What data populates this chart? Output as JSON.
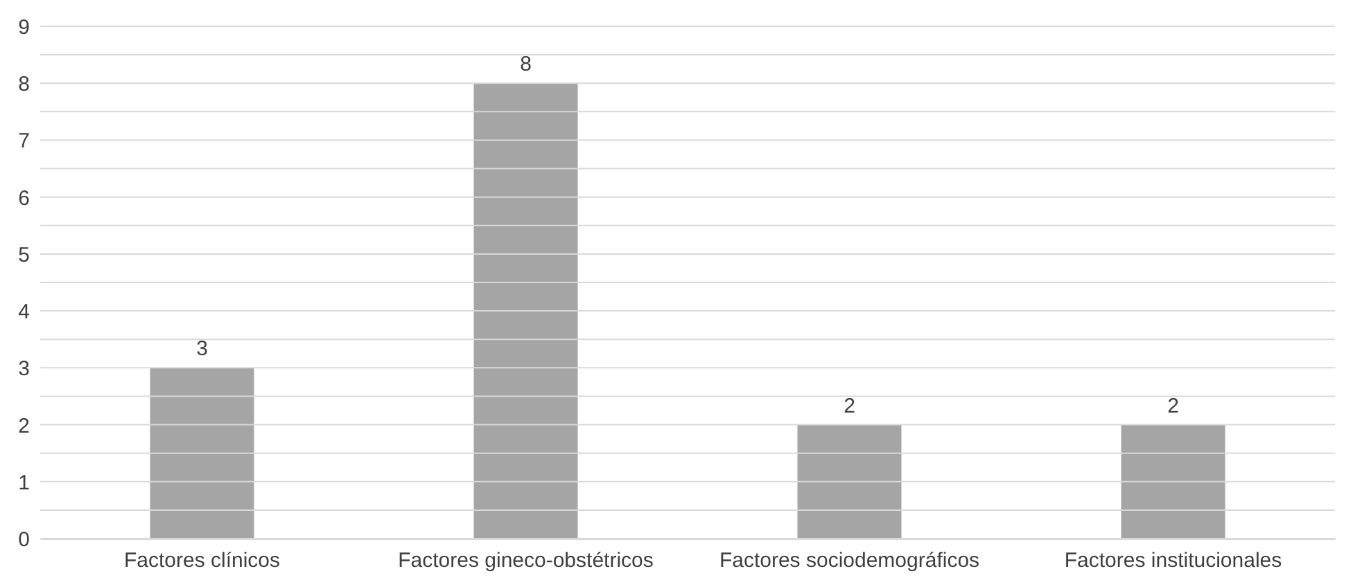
{
  "chart_data": {
    "type": "bar",
    "categories": [
      "Factores clínicos",
      "Factores gineco-obstétricos",
      "Factores sociodemográficos",
      "Factores institucionales"
    ],
    "values": [
      3,
      8,
      2,
      2
    ],
    "color": "#a5a5a5",
    "ylim": [
      0,
      9
    ],
    "yticks": [
      0,
      {
        "value": 0.5,
        "label": null
      },
      1,
      {
        "value": 1.5,
        "label": null
      },
      2,
      {
        "value": 2.5,
        "label": null
      },
      3,
      {
        "value": 3.5,
        "label": null
      },
      4,
      {
        "value": 4.5,
        "label": null
      },
      5,
      {
        "value": 5.5,
        "label": null
      },
      6,
      {
        "value": 6.5,
        "label": null
      },
      7,
      {
        "value": 7.5,
        "label": null
      },
      8,
      {
        "value": 8.5,
        "label": null
      },
      9
    ],
    "grid": true,
    "data_labels": true
  }
}
